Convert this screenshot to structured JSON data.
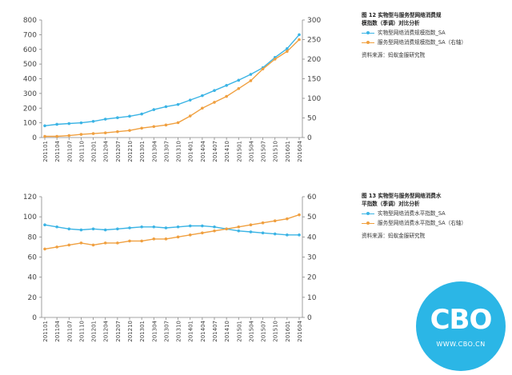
{
  "chart_data": [
    {
      "type": "line",
      "title": "",
      "xlabel": "",
      "ylabel": "",
      "ylim_left": [
        0,
        800
      ],
      "ylim_right": [
        0,
        300
      ],
      "yticks_left": [
        "0",
        "100",
        "200",
        "300",
        "400",
        "500",
        "600",
        "700",
        "800"
      ],
      "yticks_right": [
        "0",
        "50",
        "100",
        "150",
        "200",
        "250",
        "300"
      ],
      "grid": false,
      "legend_position": "right",
      "categories": [
        "201101",
        "201104",
        "201107",
        "201110",
        "201201",
        "201204",
        "201207",
        "201210",
        "201301",
        "201304",
        "201307",
        "201310",
        "201401",
        "201404",
        "201407",
        "201410",
        "201501",
        "201504",
        "201507",
        "201510",
        "201601",
        "201604"
      ],
      "x_tick_labels": [
        "201101",
        "201104",
        "201107",
        "201110",
        "201201",
        "201204",
        "201207",
        "201210",
        "201301",
        "201304",
        "201307",
        "201310",
        "201401",
        "201404",
        "201407",
        "201410",
        "201501",
        "201504",
        "201507",
        "201510",
        "201601",
        "201604"
      ],
      "series": [
        {
          "name": "实物型网络消费规模指数_SA",
          "axis": "left",
          "color": "#3bb4e5",
          "values": [
            80,
            90,
            95,
            100,
            110,
            125,
            135,
            145,
            160,
            190,
            210,
            225,
            255,
            285,
            320,
            355,
            390,
            430,
            475,
            545,
            605,
            700
          ]
        },
        {
          "name": "服务型网络消费规模指数_SA（右轴）",
          "axis": "right",
          "color": "#f0a040",
          "values": [
            3,
            3,
            5,
            8,
            10,
            12,
            15,
            18,
            24,
            28,
            32,
            38,
            55,
            75,
            90,
            105,
            125,
            145,
            175,
            200,
            220,
            250
          ]
        }
      ]
    },
    {
      "type": "line",
      "title": "",
      "xlabel": "",
      "ylabel": "",
      "ylim_left": [
        0,
        120
      ],
      "ylim_right": [
        0,
        60
      ],
      "yticks_left": [
        "0",
        "20",
        "40",
        "60",
        "80",
        "100",
        "120"
      ],
      "yticks_right": [
        "0",
        "10",
        "20",
        "30",
        "40",
        "50",
        "60"
      ],
      "grid": false,
      "legend_position": "right",
      "categories": [
        "201101",
        "201104",
        "201107",
        "201110",
        "201201",
        "201204",
        "201207",
        "201210",
        "201301",
        "201304",
        "201307",
        "201310",
        "201401",
        "201404",
        "201407",
        "201410",
        "201501",
        "201504",
        "201507",
        "201510",
        "201601",
        "201604"
      ],
      "x_tick_labels": [
        "201101",
        "201104",
        "201107",
        "201110",
        "201201",
        "201204",
        "201207",
        "201210",
        "201301",
        "201304",
        "201307",
        "201310",
        "201401",
        "201404",
        "201407",
        "201410",
        "201501",
        "201504",
        "201507",
        "201510",
        "201601",
        "201604"
      ],
      "series": [
        {
          "name": "实物型网络消费水平指数_SA",
          "axis": "left",
          "color": "#3bb4e5",
          "values": [
            92,
            90,
            88,
            87,
            88,
            87,
            88,
            89,
            90,
            90,
            89,
            90,
            91,
            91,
            90,
            88,
            86,
            85,
            84,
            83,
            82,
            82
          ]
        },
        {
          "name": "服务型网络消费水平指数_SA（右轴）",
          "axis": "right",
          "color": "#f0a040",
          "values": [
            34,
            35,
            36,
            37,
            36,
            37,
            37,
            38,
            38,
            39,
            39,
            40,
            41,
            42,
            43,
            44,
            45,
            46,
            47,
            48,
            49,
            51
          ]
        }
      ]
    }
  ],
  "legend1": {
    "title_line1": "图 12 实物型与服务型网络消费规",
    "title_line2": "模指数（季调）对比分析",
    "series1": "实物型网络消费规模指数_SA",
    "series2": "服务型网络消费规模指数_SA（右轴）",
    "source": "资料来源：蚂蚁金服研究院"
  },
  "legend2": {
    "title_line1": "图 13 实物型与服务型网络消费水",
    "title_line2": "平指数（季调）对比分析",
    "series1": "实物型网络消费水平指数_SA",
    "series2": "服务型网络消费水平指数_SA（右轴）",
    "source": "资料来源：蚂蚁金服研究院"
  },
  "logo": {
    "text": "CBO",
    "url": "WWW.CBO.CN",
    "color": "#2bb6e6"
  }
}
